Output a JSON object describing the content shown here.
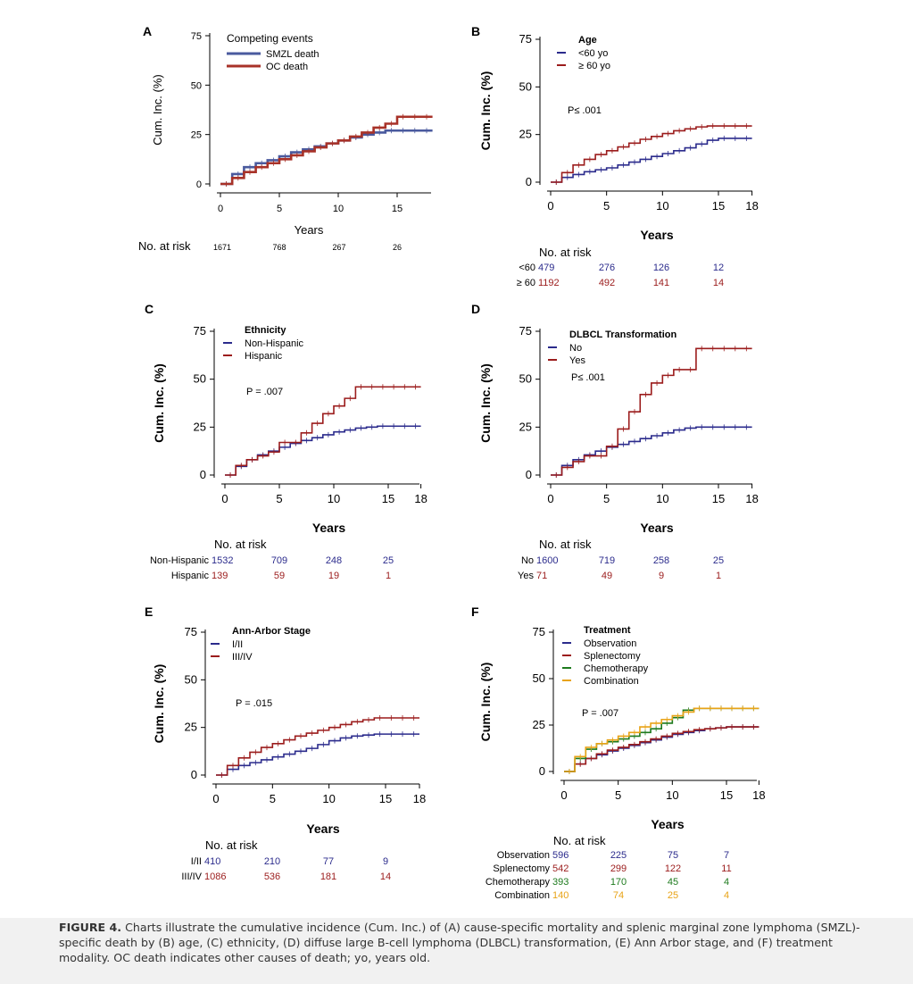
{
  "colors": {
    "blue": "#2b2b8c",
    "red": "#9b1c1c",
    "green": "#1d7a1d",
    "orange": "#e8a317",
    "smzl_blue": "#4a5a9e",
    "oc_red": "#a83228"
  },
  "caption": {
    "label": "FIGURE 4.",
    "text": "Charts illustrate the cumulative incidence (Cum. Inc.) of (A) cause-specific mortality and splenic marginal zone lymphoma (SMZL)-specific death by (B) age, (C) ethnicity, (D) diffuse large B-cell lymphoma (DLBCL) transformation, (E) Ann Arbor stage, and (F) treatment modality. OC death indicates other causes of death; yo, years old."
  },
  "chart_data": [
    {
      "panel": "A",
      "type": "line",
      "ylabel": "Cum. Inc. (%)",
      "xlabel": "Years",
      "xticks": [
        "0",
        "5",
        "10",
        "15"
      ],
      "yticks": [
        "0",
        "25",
        "50",
        "75"
      ],
      "xlim": [
        0,
        18
      ],
      "ylim": [
        0,
        75
      ],
      "legend_title": "Competing events",
      "pvalue": "",
      "series": [
        {
          "name": "SMZL death",
          "color": "#4a5a9e",
          "x": [
            0,
            1,
            2,
            3,
            4,
            5,
            6,
            7,
            8,
            9,
            10,
            11,
            12,
            13,
            14,
            15,
            16,
            17,
            18
          ],
          "y": [
            0,
            5,
            8.5,
            10.5,
            12,
            14,
            16,
            17.5,
            19,
            20.5,
            22,
            23.5,
            25,
            26,
            27,
            27,
            27,
            27,
            27
          ]
        },
        {
          "name": "OC death",
          "color": "#a83228",
          "x": [
            0,
            1,
            2,
            3,
            4,
            5,
            6,
            7,
            8,
            9,
            10,
            11,
            12,
            13,
            14,
            15,
            16,
            17,
            18
          ],
          "y": [
            0,
            3,
            6,
            8.5,
            10.5,
            12.5,
            14.5,
            16.5,
            18.5,
            20.5,
            22,
            24,
            26,
            28.5,
            30.5,
            34,
            34,
            34,
            34
          ]
        }
      ],
      "risk": {
        "header": "No. at risk",
        "groups": [
          {
            "label": "",
            "color": "#000",
            "values": [
              "1671",
              "768",
              "267",
              "26"
            ]
          }
        ]
      }
    },
    {
      "panel": "B",
      "type": "line",
      "ylabel": "Cum. Inc. (%)",
      "xlabel": "Years",
      "xticks": [
        "0",
        "5",
        "10",
        "15",
        "18"
      ],
      "yticks": [
        "0",
        "25",
        "50",
        "75"
      ],
      "xlim": [
        0,
        18
      ],
      "ylim": [
        0,
        75
      ],
      "legend_title": "Age",
      "pvalue": "P≤ .001",
      "series": [
        {
          "name": "<60 yo",
          "color": "#2b2b8c",
          "x": [
            0,
            1,
            2,
            3,
            4,
            5,
            6,
            7,
            8,
            9,
            10,
            11,
            12,
            13,
            14,
            15,
            16,
            17,
            18
          ],
          "y": [
            0,
            2.5,
            4,
            5.5,
            6.5,
            7.5,
            9,
            10.5,
            12,
            13.5,
            15,
            16.5,
            18,
            20,
            22,
            23,
            23,
            23,
            23
          ]
        },
        {
          "name": "≥ 60 yo",
          "color": "#9b1c1c",
          "x": [
            0,
            1,
            2,
            3,
            4,
            5,
            6,
            7,
            8,
            9,
            10,
            11,
            12,
            13,
            14,
            15,
            16,
            17,
            18
          ],
          "y": [
            0,
            5,
            9,
            12,
            14.5,
            16.5,
            18.5,
            20.5,
            22.5,
            24,
            25.5,
            27,
            28,
            29,
            29.5,
            29.5,
            29.5,
            29.5,
            29.5
          ]
        }
      ],
      "risk": {
        "header": "No. at risk",
        "groups": [
          {
            "label": "<60",
            "color": "#2b2b8c",
            "values": [
              "479",
              "276",
              "126",
              "12"
            ]
          },
          {
            "label": "≥ 60",
            "color": "#9b1c1c",
            "values": [
              "1192",
              "492",
              "141",
              "14"
            ]
          }
        ]
      }
    },
    {
      "panel": "C",
      "type": "line",
      "ylabel": "Cum. Inc. (%)",
      "xlabel": "Years",
      "xticks": [
        "0",
        "5",
        "10",
        "15",
        "18"
      ],
      "yticks": [
        "0",
        "25",
        "50",
        "75"
      ],
      "xlim": [
        0,
        18
      ],
      "ylim": [
        0,
        75
      ],
      "legend_title": "Ethnicity",
      "pvalue": "P = .007",
      "series": [
        {
          "name": "Non-Hispanic",
          "color": "#2b2b8c",
          "x": [
            0,
            1,
            2,
            3,
            4,
            5,
            6,
            7,
            8,
            9,
            10,
            11,
            12,
            13,
            14,
            15,
            16,
            17,
            18
          ],
          "y": [
            0,
            4.5,
            8,
            10.5,
            12.5,
            14.5,
            16.5,
            18,
            19.5,
            21,
            22.5,
            23.5,
            24.5,
            25,
            25.5,
            25.5,
            25.5,
            25.5,
            25.5
          ]
        },
        {
          "name": "Hispanic",
          "color": "#9b1c1c",
          "x": [
            0,
            1,
            2,
            3,
            4,
            5,
            6,
            7,
            8,
            9,
            10,
            11,
            12,
            13,
            14,
            15,
            16,
            17,
            18
          ],
          "y": [
            0,
            5,
            8,
            10,
            12,
            17,
            17,
            22,
            27,
            32,
            36,
            40,
            46,
            46,
            46,
            46,
            46,
            46,
            46
          ]
        }
      ],
      "risk": {
        "header": "No. at risk",
        "groups": [
          {
            "label": "Non-Hispanic",
            "color": "#2b2b8c",
            "values": [
              "1532",
              "709",
              "248",
              "25"
            ]
          },
          {
            "label": "Hispanic",
            "color": "#9b1c1c",
            "values": [
              "139",
              "59",
              "19",
              "1"
            ]
          }
        ]
      }
    },
    {
      "panel": "D",
      "type": "line",
      "ylabel": "Cum. Inc. (%)",
      "xlabel": "Years",
      "xticks": [
        "0",
        "5",
        "10",
        "15",
        "18"
      ],
      "yticks": [
        "0",
        "25",
        "50",
        "75"
      ],
      "xlim": [
        0,
        18
      ],
      "ylim": [
        0,
        75
      ],
      "legend_title": "DLBCL Transformation",
      "pvalue": "P≤ .001",
      "series": [
        {
          "name": "No",
          "color": "#2b2b8c",
          "x": [
            0,
            1,
            2,
            3,
            4,
            5,
            6,
            7,
            8,
            9,
            10,
            11,
            12,
            13,
            14,
            15,
            16,
            17,
            18
          ],
          "y": [
            0,
            5,
            8,
            10.5,
            12.5,
            14.5,
            16,
            17.5,
            19,
            20.5,
            22,
            23.5,
            24.5,
            25,
            25,
            25,
            25,
            25,
            25
          ]
        },
        {
          "name": "Yes",
          "color": "#9b1c1c",
          "x": [
            0,
            1,
            2,
            3,
            4,
            5,
            6,
            7,
            8,
            9,
            10,
            11,
            12,
            13,
            14,
            15,
            16,
            17,
            18
          ],
          "y": [
            0,
            4,
            7,
            10,
            10,
            15,
            24,
            33,
            42,
            48,
            52,
            55,
            55,
            66,
            66,
            66,
            66,
            66,
            66
          ]
        }
      ],
      "risk": {
        "header": "No. at risk",
        "groups": [
          {
            "label": "No",
            "color": "#2b2b8c",
            "values": [
              "1600",
              "719",
              "258",
              "25"
            ]
          },
          {
            "label": "Yes",
            "color": "#9b1c1c",
            "values": [
              "71",
              "49",
              "9",
              "1"
            ]
          }
        ]
      }
    },
    {
      "panel": "E",
      "type": "line",
      "ylabel": "Cum. Inc. (%)",
      "xlabel": "Years",
      "xticks": [
        "0",
        "5",
        "10",
        "15",
        "18"
      ],
      "yticks": [
        "0",
        "25",
        "50",
        "75"
      ],
      "xlim": [
        0,
        18
      ],
      "ylim": [
        0,
        75
      ],
      "legend_title": "Ann-Arbor Stage",
      "pvalue": "P = .015",
      "series": [
        {
          "name": "I/II",
          "color": "#2b2b8c",
          "x": [
            0,
            1,
            2,
            3,
            4,
            5,
            6,
            7,
            8,
            9,
            10,
            11,
            12,
            13,
            14,
            15,
            16,
            17,
            18
          ],
          "y": [
            0,
            3,
            5,
            6.5,
            8,
            9.5,
            11,
            12.5,
            14,
            16,
            18,
            19.5,
            20.5,
            21,
            21.5,
            21.5,
            21.5,
            21.5,
            21.5
          ]
        },
        {
          "name": "III/IV",
          "color": "#9b1c1c",
          "x": [
            0,
            1,
            2,
            3,
            4,
            5,
            6,
            7,
            8,
            9,
            10,
            11,
            12,
            13,
            14,
            15,
            16,
            17,
            18
          ],
          "y": [
            0,
            5,
            9,
            12,
            14.5,
            16.5,
            18.5,
            20.5,
            22,
            23.5,
            25,
            26.5,
            28,
            29,
            30,
            30,
            30,
            30,
            30
          ]
        }
      ],
      "risk": {
        "header": "No. at risk",
        "groups": [
          {
            "label": "I/II",
            "color": "#2b2b8c",
            "values": [
              "410",
              "210",
              "77",
              "9"
            ]
          },
          {
            "label": "III/IV",
            "color": "#9b1c1c",
            "values": [
              "1086",
              "536",
              "181",
              "14"
            ]
          }
        ]
      }
    },
    {
      "panel": "F",
      "type": "line",
      "ylabel": "Cum. Inc. (%)",
      "xlabel": "Years",
      "xticks": [
        "0",
        "5",
        "10",
        "15",
        "18"
      ],
      "yticks": [
        "0",
        "25",
        "50",
        "75"
      ],
      "xlim": [
        0,
        18
      ],
      "ylim": [
        0,
        75
      ],
      "legend_title": "Treatment",
      "pvalue": "P = .007",
      "series": [
        {
          "name": "Observation",
          "color": "#2b2b8c",
          "x": [
            0,
            1,
            2,
            3,
            4,
            5,
            6,
            7,
            8,
            9,
            10,
            11,
            12,
            13,
            14,
            15,
            16,
            17,
            18
          ],
          "y": [
            0,
            4,
            7,
            9,
            11,
            12.5,
            14,
            15.5,
            17,
            18.5,
            20,
            21,
            22,
            23,
            23.5,
            24,
            24,
            24,
            24
          ]
        },
        {
          "name": "Splenectomy",
          "color": "#9b1c1c",
          "x": [
            0,
            1,
            2,
            3,
            4,
            5,
            6,
            7,
            8,
            9,
            10,
            11,
            12,
            13,
            14,
            15,
            16,
            17,
            18
          ],
          "y": [
            0,
            4,
            7,
            9.5,
            11.5,
            13,
            14.5,
            16,
            17.5,
            19,
            20.5,
            21.5,
            22.5,
            23,
            23.5,
            24,
            24,
            24,
            24
          ]
        },
        {
          "name": "Chemotherapy",
          "color": "#1d7a1d",
          "x": [
            0,
            1,
            2,
            3,
            4,
            5,
            6,
            7,
            8,
            9,
            10,
            11,
            12,
            13,
            14,
            15,
            16,
            17,
            18
          ],
          "y": [
            0,
            7,
            12,
            15,
            16,
            17.5,
            19,
            21,
            23,
            26,
            29,
            33,
            34,
            34,
            34,
            34,
            34,
            34,
            34
          ]
        },
        {
          "name": "Combination",
          "color": "#e8a317",
          "x": [
            0,
            1,
            2,
            3,
            4,
            5,
            6,
            7,
            8,
            9,
            10,
            11,
            12,
            13,
            14,
            15,
            16,
            17,
            18
          ],
          "y": [
            0,
            8,
            13,
            15,
            17,
            19,
            21,
            24,
            26,
            28,
            30,
            32,
            34,
            34,
            34,
            34,
            34,
            34,
            34
          ]
        }
      ],
      "risk": {
        "header": "No. at risk",
        "groups": [
          {
            "label": "Observation",
            "color": "#2b2b8c",
            "values": [
              "596",
              "225",
              "75",
              "7"
            ]
          },
          {
            "label": "Splenectomy",
            "color": "#9b1c1c",
            "values": [
              "542",
              "299",
              "122",
              "11"
            ]
          },
          {
            "label": "Chemotherapy",
            "color": "#1d7a1d",
            "values": [
              "393",
              "170",
              "45",
              "4"
            ]
          },
          {
            "label": "Combination",
            "color": "#e8a317",
            "values": [
              "140",
              "74",
              "25",
              "4"
            ]
          }
        ]
      }
    }
  ]
}
